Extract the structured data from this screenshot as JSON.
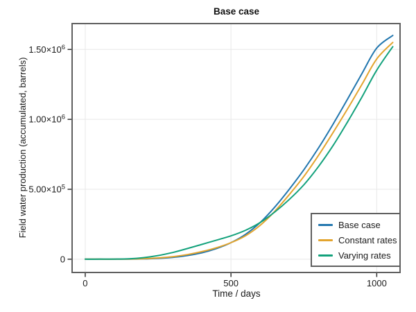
{
  "chart_data": {
    "type": "line",
    "title": "Base case",
    "xlabel": "Time / days",
    "ylabel": "Field water production (accumulated, barrels)",
    "xlim": [
      -45,
      1080
    ],
    "ylim": [
      -95000,
      1685000
    ],
    "grid": true,
    "legend_position": "bottom-right",
    "frame_color": "#5f5f5f",
    "grid_color": "#e8e8e8",
    "tick_mark_color": "#333333",
    "text_color": "#1a1a1a",
    "xticks": [
      {
        "v": 0,
        "label": "0"
      },
      {
        "v": 500,
        "label": "500"
      },
      {
        "v": 1000,
        "label": "1000"
      }
    ],
    "yticks": [
      {
        "v": 0,
        "mantissa": "0",
        "exp": ""
      },
      {
        "v": 500000,
        "mantissa": "5.00×10",
        "exp": "5"
      },
      {
        "v": 1000000,
        "mantissa": "1.00×10",
        "exp": "6"
      },
      {
        "v": 1500000,
        "mantissa": "1.50×10",
        "exp": "6"
      }
    ],
    "x": [
      0,
      50,
      100,
      150,
      200,
      250,
      300,
      350,
      400,
      450,
      500,
      550,
      600,
      650,
      700,
      750,
      800,
      850,
      900,
      950,
      1000,
      1055
    ],
    "series": [
      {
        "name": "Base case",
        "color": "#2176ae",
        "values": [
          0,
          0,
          0,
          500,
          2000,
          6000,
          13000,
          26000,
          46000,
          76000,
          118000,
          178000,
          262000,
          372000,
          500000,
          640000,
          795000,
          965000,
          1145000,
          1330000,
          1510000,
          1600000
        ]
      },
      {
        "name": "Constant rates",
        "color": "#e3a42e",
        "values": [
          0,
          0,
          0,
          1000,
          3500,
          9000,
          18000,
          33000,
          54000,
          82000,
          118000,
          168000,
          242000,
          342000,
          462000,
          592000,
          742000,
          905000,
          1075000,
          1252000,
          1432000,
          1550000
        ]
      },
      {
        "name": "Varying rates",
        "color": "#12a17b",
        "values": [
          0,
          0,
          500,
          3000,
          11000,
          26000,
          48000,
          76000,
          106000,
          136000,
          167000,
          207000,
          262000,
          337000,
          427000,
          532000,
          662000,
          812000,
          982000,
          1162000,
          1352000,
          1520000
        ]
      }
    ]
  }
}
